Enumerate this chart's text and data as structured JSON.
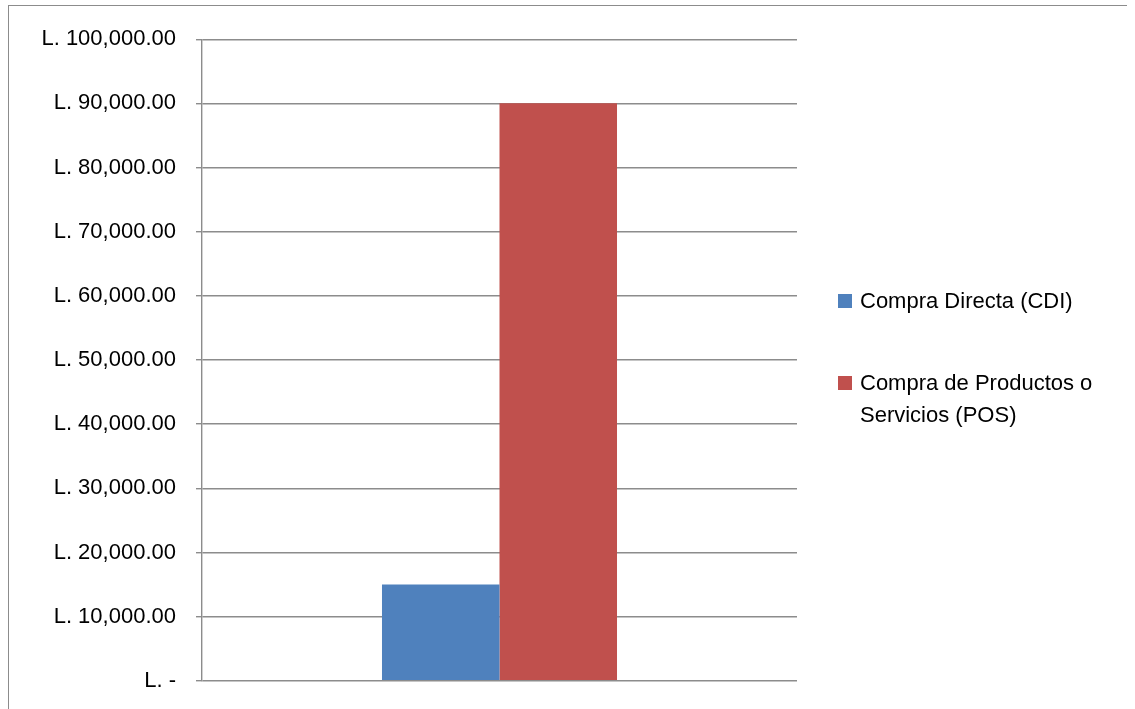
{
  "chart_data": {
    "type": "bar",
    "categories": [
      null
    ],
    "series": [
      {
        "name": "Compra Directa (CDI)",
        "color": "#4f81bd",
        "values": [
          15000
        ]
      },
      {
        "name": "Compra de Productos o Servicios (POS)",
        "color": "#c0504d",
        "values": [
          90000
        ]
      }
    ],
    "ylim": [
      0,
      100000
    ],
    "yticks": [
      {
        "value": 0,
        "label": "L. -"
      },
      {
        "value": 10000,
        "label": "L. 10,000.00"
      },
      {
        "value": 20000,
        "label": "L. 20,000.00"
      },
      {
        "value": 30000,
        "label": "L. 30,000.00"
      },
      {
        "value": 40000,
        "label": "L. 40,000.00"
      },
      {
        "value": 50000,
        "label": "L. 50,000.00"
      },
      {
        "value": 60000,
        "label": "L. 60,000.00"
      },
      {
        "value": 70000,
        "label": "L. 70,000.00"
      },
      {
        "value": 80000,
        "label": "L. 80,000.00"
      },
      {
        "value": 90000,
        "label": "L. 90,000.00"
      },
      {
        "value": 100000,
        "label": "L. 100,000.00"
      }
    ],
    "grid": "y",
    "legend": "right",
    "tick_labels": "y"
  }
}
